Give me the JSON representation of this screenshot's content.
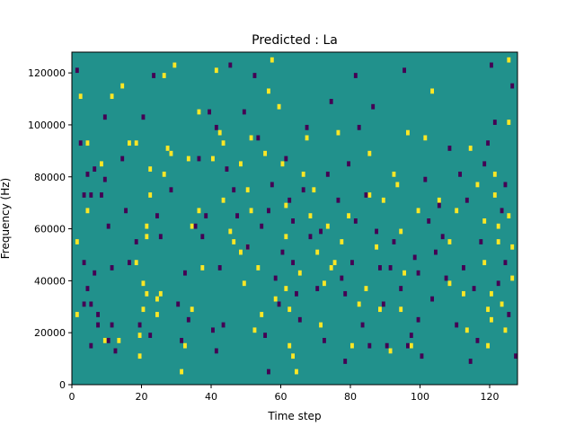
{
  "chart_data": {
    "type": "heatmap",
    "title": "Predicted : La",
    "xlabel": "Time step",
    "ylabel": "Frequency (Hz)",
    "xlim": [
      0,
      128
    ],
    "ylim": [
      0,
      128000
    ],
    "x_ticks": [
      0,
      20,
      40,
      60,
      80,
      100,
      120
    ],
    "y_ticks": [
      0,
      20000,
      40000,
      60000,
      80000,
      100000,
      120000
    ],
    "y_tick_labels": [
      "0",
      "20000",
      "40000",
      "60000",
      "80000",
      "100000",
      "120000"
    ],
    "grid": false,
    "colors": {
      "background": "#21918c",
      "high": "#fde725",
      "low": "#440154"
    },
    "cell_size": {
      "time_steps": 1,
      "hz": 2000
    },
    "cells_high": [
      [
        1,
        54000
      ],
      [
        1,
        26000
      ],
      [
        2,
        110000
      ],
      [
        4,
        66000
      ],
      [
        4,
        92000
      ],
      [
        8,
        84000
      ],
      [
        9,
        16000
      ],
      [
        11,
        110000
      ],
      [
        13,
        16000
      ],
      [
        14,
        114000
      ],
      [
        16,
        92000
      ],
      [
        18,
        92000
      ],
      [
        18,
        46000
      ],
      [
        19,
        10000
      ],
      [
        19,
        18000
      ],
      [
        20,
        38000
      ],
      [
        20,
        28000
      ],
      [
        21,
        34000
      ],
      [
        21,
        56000
      ],
      [
        21,
        60000
      ],
      [
        22,
        82000
      ],
      [
        22,
        72000
      ],
      [
        24,
        32000
      ],
      [
        24,
        26000
      ],
      [
        25,
        34000
      ],
      [
        26,
        80000
      ],
      [
        26,
        118000
      ],
      [
        27,
        90000
      ],
      [
        28,
        88000
      ],
      [
        29,
        122000
      ],
      [
        31,
        4000
      ],
      [
        32,
        14000
      ],
      [
        33,
        86000
      ],
      [
        34,
        28000
      ],
      [
        34,
        60000
      ],
      [
        36,
        104000
      ],
      [
        36,
        66000
      ],
      [
        37,
        44000
      ],
      [
        40,
        86000
      ],
      [
        41,
        120000
      ],
      [
        42,
        96000
      ],
      [
        43,
        92000
      ],
      [
        43,
        70000
      ],
      [
        45,
        58000
      ],
      [
        46,
        54000
      ],
      [
        48,
        50000
      ],
      [
        48,
        84000
      ],
      [
        49,
        38000
      ],
      [
        50,
        52000
      ],
      [
        50,
        74000
      ],
      [
        51,
        94000
      ],
      [
        51,
        66000
      ],
      [
        52,
        20000
      ],
      [
        53,
        44000
      ],
      [
        54,
        26000
      ],
      [
        55,
        88000
      ],
      [
        56,
        112000
      ],
      [
        57,
        124000
      ],
      [
        58,
        32000
      ],
      [
        59,
        106000
      ],
      [
        60,
        84000
      ],
      [
        61,
        68000
      ],
      [
        61,
        56000
      ],
      [
        61,
        36000
      ],
      [
        62,
        28000
      ],
      [
        62,
        14000
      ],
      [
        63,
        10000
      ],
      [
        64,
        4000
      ],
      [
        65,
        42000
      ],
      [
        66,
        80000
      ],
      [
        67,
        94000
      ],
      [
        68,
        64000
      ],
      [
        69,
        74000
      ],
      [
        70,
        50000
      ],
      [
        71,
        22000
      ],
      [
        72,
        38000
      ],
      [
        73,
        60000
      ],
      [
        74,
        44000
      ],
      [
        75,
        46000
      ],
      [
        76,
        96000
      ],
      [
        77,
        54000
      ],
      [
        79,
        64000
      ],
      [
        80,
        14000
      ],
      [
        82,
        30000
      ],
      [
        84,
        36000
      ],
      [
        85,
        72000
      ],
      [
        85,
        88000
      ],
      [
        87,
        52000
      ],
      [
        88,
        28000
      ],
      [
        89,
        70000
      ],
      [
        91,
        12000
      ],
      [
        92,
        80000
      ],
      [
        93,
        76000
      ],
      [
        94,
        28000
      ],
      [
        94,
        58000
      ],
      [
        95,
        42000
      ],
      [
        96,
        96000
      ],
      [
        97,
        14000
      ],
      [
        99,
        66000
      ],
      [
        101,
        94000
      ],
      [
        103,
        112000
      ],
      [
        105,
        70000
      ],
      [
        108,
        54000
      ],
      [
        108,
        38000
      ],
      [
        110,
        66000
      ],
      [
        112,
        34000
      ],
      [
        113,
        20000
      ],
      [
        114,
        90000
      ],
      [
        116,
        76000
      ],
      [
        118,
        62000
      ],
      [
        118,
        46000
      ],
      [
        119,
        28000
      ],
      [
        119,
        14000
      ],
      [
        120,
        34000
      ],
      [
        120,
        24000
      ],
      [
        121,
        80000
      ],
      [
        121,
        72000
      ],
      [
        122,
        60000
      ],
      [
        122,
        54000
      ],
      [
        123,
        30000
      ],
      [
        124,
        20000
      ],
      [
        125,
        64000
      ],
      [
        125,
        100000
      ],
      [
        125,
        124000
      ],
      [
        126,
        40000
      ],
      [
        126,
        52000
      ]
    ],
    "cells_low": [
      [
        1,
        120000
      ],
      [
        2,
        92000
      ],
      [
        3,
        46000
      ],
      [
        4,
        36000
      ],
      [
        4,
        80000
      ],
      [
        5,
        14000
      ],
      [
        5,
        30000
      ],
      [
        6,
        42000
      ],
      [
        7,
        26000
      ],
      [
        8,
        72000
      ],
      [
        9,
        78000
      ],
      [
        9,
        102000
      ],
      [
        10,
        60000
      ],
      [
        11,
        44000
      ],
      [
        12,
        12000
      ],
      [
        14,
        86000
      ],
      [
        16,
        46000
      ],
      [
        18,
        54000
      ],
      [
        19,
        22000
      ],
      [
        20,
        102000
      ],
      [
        22,
        18000
      ],
      [
        23,
        118000
      ],
      [
        24,
        64000
      ],
      [
        25,
        56000
      ],
      [
        28,
        74000
      ],
      [
        30,
        30000
      ],
      [
        31,
        16000
      ],
      [
        32,
        42000
      ],
      [
        33,
        24000
      ],
      [
        35,
        60000
      ],
      [
        36,
        86000
      ],
      [
        37,
        56000
      ],
      [
        38,
        64000
      ],
      [
        39,
        104000
      ],
      [
        40,
        20000
      ],
      [
        41,
        98000
      ],
      [
        41,
        12000
      ],
      [
        42,
        44000
      ],
      [
        43,
        22000
      ],
      [
        44,
        82000
      ],
      [
        45,
        122000
      ],
      [
        46,
        74000
      ],
      [
        47,
        64000
      ],
      [
        49,
        104000
      ],
      [
        50,
        52000
      ],
      [
        52,
        118000
      ],
      [
        53,
        94000
      ],
      [
        54,
        60000
      ],
      [
        55,
        18000
      ],
      [
        56,
        66000
      ],
      [
        56,
        4000
      ],
      [
        57,
        76000
      ],
      [
        58,
        40000
      ],
      [
        59,
        30000
      ],
      [
        60,
        50000
      ],
      [
        61,
        86000
      ],
      [
        62,
        70000
      ],
      [
        63,
        46000
      ],
      [
        63,
        62000
      ],
      [
        64,
        34000
      ],
      [
        65,
        24000
      ],
      [
        66,
        74000
      ],
      [
        67,
        98000
      ],
      [
        68,
        56000
      ],
      [
        70,
        36000
      ],
      [
        71,
        58000
      ],
      [
        72,
        16000
      ],
      [
        73,
        80000
      ],
      [
        74,
        108000
      ],
      [
        76,
        70000
      ],
      [
        77,
        40000
      ],
      [
        78,
        34000
      ],
      [
        78,
        8000
      ],
      [
        79,
        84000
      ],
      [
        80,
        46000
      ],
      [
        81,
        62000
      ],
      [
        81,
        118000
      ],
      [
        82,
        98000
      ],
      [
        83,
        22000
      ],
      [
        84,
        72000
      ],
      [
        85,
        14000
      ],
      [
        86,
        106000
      ],
      [
        87,
        58000
      ],
      [
        88,
        44000
      ],
      [
        89,
        30000
      ],
      [
        90,
        14000
      ],
      [
        91,
        44000
      ],
      [
        92,
        54000
      ],
      [
        94,
        36000
      ],
      [
        95,
        120000
      ],
      [
        96,
        14000
      ],
      [
        97,
        18000
      ],
      [
        98,
        48000
      ],
      [
        99,
        42000
      ],
      [
        99,
        24000
      ],
      [
        100,
        10000
      ],
      [
        101,
        78000
      ],
      [
        102,
        62000
      ],
      [
        103,
        32000
      ],
      [
        104,
        50000
      ],
      [
        105,
        68000
      ],
      [
        106,
        56000
      ],
      [
        107,
        40000
      ],
      [
        108,
        90000
      ],
      [
        110,
        22000
      ],
      [
        111,
        80000
      ],
      [
        112,
        44000
      ],
      [
        113,
        70000
      ],
      [
        114,
        8000
      ],
      [
        115,
        36000
      ],
      [
        116,
        16000
      ],
      [
        117,
        54000
      ],
      [
        118,
        84000
      ],
      [
        119,
        92000
      ],
      [
        120,
        122000
      ],
      [
        121,
        100000
      ],
      [
        122,
        38000
      ],
      [
        123,
        66000
      ],
      [
        124,
        46000
      ],
      [
        124,
        76000
      ],
      [
        125,
        26000
      ],
      [
        126,
        114000
      ],
      [
        127,
        10000
      ],
      [
        3,
        72000
      ],
      [
        3,
        30000
      ],
      [
        5,
        72000
      ],
      [
        6,
        82000
      ],
      [
        7,
        22000
      ],
      [
        10,
        16000
      ],
      [
        11,
        22000
      ],
      [
        15,
        66000
      ]
    ]
  }
}
